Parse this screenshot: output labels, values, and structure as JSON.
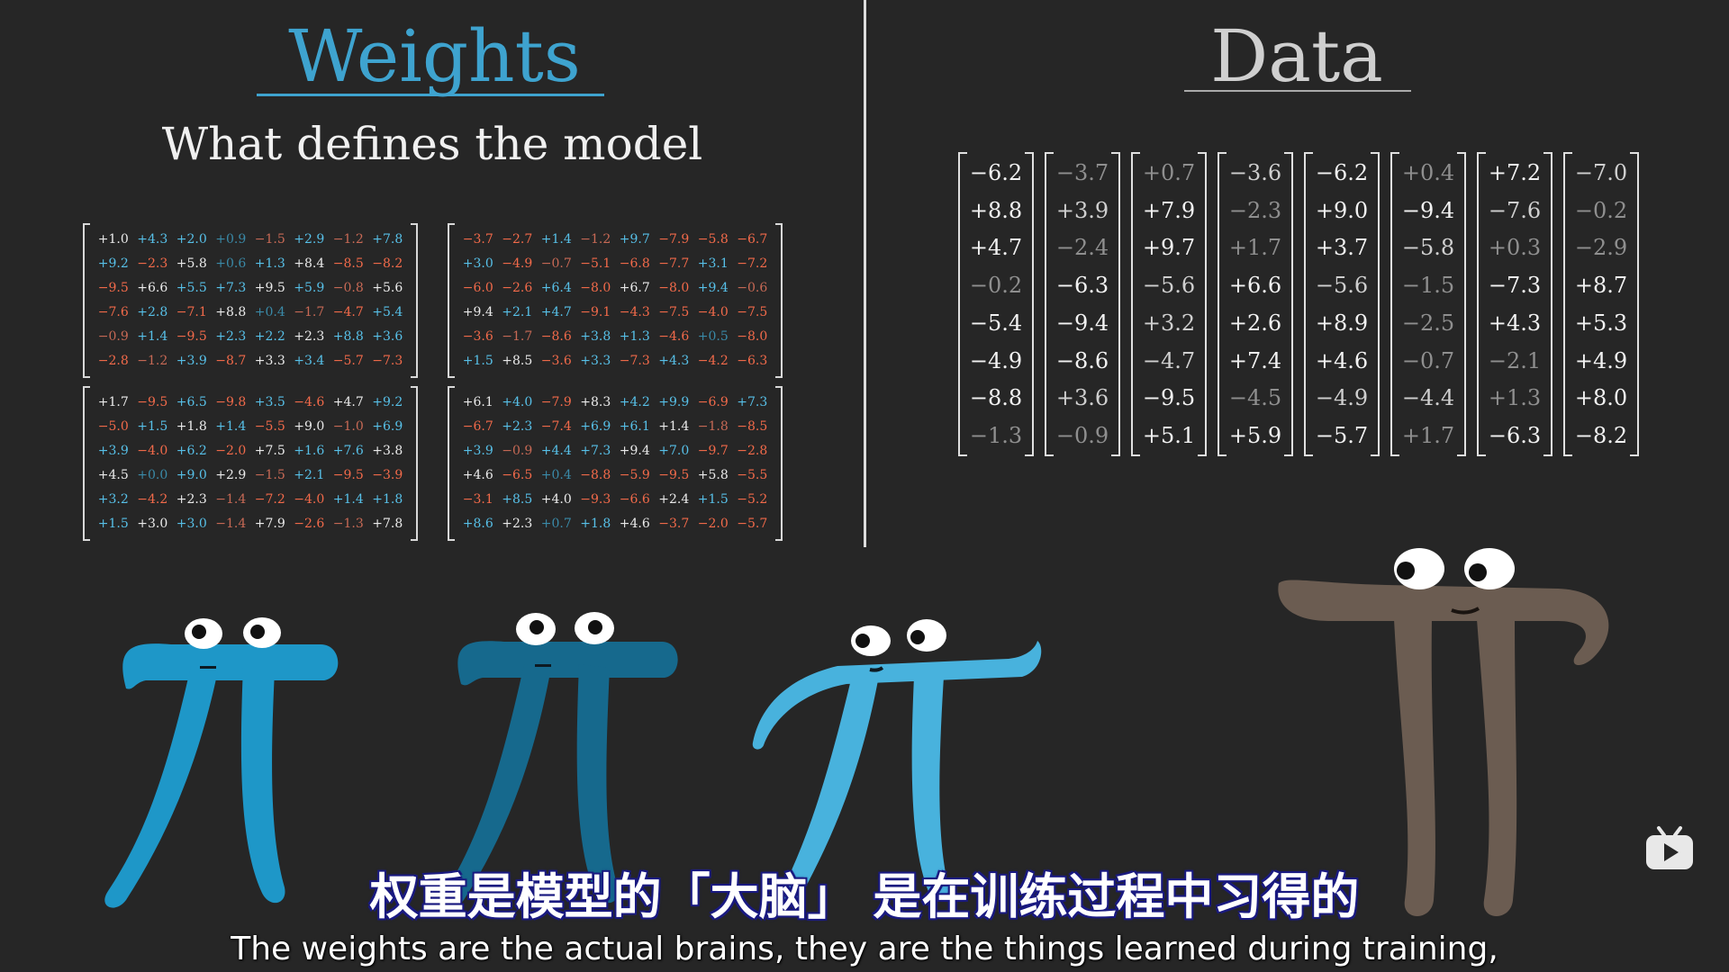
{
  "weights_title": "Weights",
  "weights_subtitle": "What defines the model",
  "data_title": "Data",
  "weight_matrices": [
    [
      [
        "+1.0",
        "+4.3",
        "+2.0",
        "+0.9",
        "−1.5",
        "+2.9",
        "−1.2",
        "+7.8"
      ],
      [
        "+9.2",
        "−2.3",
        "+5.8",
        "+0.6",
        "+1.3",
        "+8.4",
        "−8.5",
        "−8.2"
      ],
      [
        "−9.5",
        "+6.6",
        "+5.5",
        "+7.3",
        "+9.5",
        "+5.9",
        "−0.8",
        "+5.6"
      ],
      [
        "−7.6",
        "+2.8",
        "−7.1",
        "+8.8",
        "+0.4",
        "−1.7",
        "−4.7",
        "+5.4"
      ],
      [
        "−0.9",
        "+1.4",
        "−9.5",
        "+2.3",
        "+2.2",
        "+2.3",
        "+8.8",
        "+3.6"
      ],
      [
        "−2.8",
        "−1.2",
        "+3.9",
        "−8.7",
        "+3.3",
        "+3.4",
        "−5.7",
        "−7.3"
      ]
    ],
    [
      [
        "−3.7",
        "−2.7",
        "+1.4",
        "−1.2",
        "+9.7",
        "−7.9",
        "−5.8",
        "−6.7"
      ],
      [
        "+3.0",
        "−4.9",
        "−0.7",
        "−5.1",
        "−6.8",
        "−7.7",
        "+3.1",
        "−7.2"
      ],
      [
        "−6.0",
        "−2.6",
        "+6.4",
        "−8.0",
        "+6.7",
        "−8.0",
        "+9.4",
        "−0.6"
      ],
      [
        "+9.4",
        "+2.1",
        "+4.7",
        "−9.1",
        "−4.3",
        "−7.5",
        "−4.0",
        "−7.5"
      ],
      [
        "−3.6",
        "−1.7",
        "−8.6",
        "+3.8",
        "+1.3",
        "−4.6",
        "+0.5",
        "−8.0"
      ],
      [
        "+1.5",
        "+8.5",
        "−3.6",
        "+3.3",
        "−7.3",
        "+4.3",
        "−4.2",
        "−6.3"
      ]
    ],
    [
      [
        "+1.7",
        "−9.5",
        "+6.5",
        "−9.8",
        "+3.5",
        "−4.6",
        "+4.7",
        "+9.2"
      ],
      [
        "−5.0",
        "+1.5",
        "+1.8",
        "+1.4",
        "−5.5",
        "+9.0",
        "−1.0",
        "+6.9"
      ],
      [
        "+3.9",
        "−4.0",
        "+6.2",
        "−2.0",
        "+7.5",
        "+1.6",
        "+7.6",
        "+3.8"
      ],
      [
        "+4.5",
        "+0.0",
        "+9.0",
        "+2.9",
        "−1.5",
        "+2.1",
        "−9.5",
        "−3.9"
      ],
      [
        "+3.2",
        "−4.2",
        "+2.3",
        "−1.4",
        "−7.2",
        "−4.0",
        "+1.4",
        "+1.8"
      ],
      [
        "+1.5",
        "+3.0",
        "+3.0",
        "−1.4",
        "+7.9",
        "−2.6",
        "−1.3",
        "+7.8"
      ]
    ],
    [
      [
        "+6.1",
        "+4.0",
        "−7.9",
        "+8.3",
        "+4.2",
        "+9.9",
        "−6.9",
        "+7.3"
      ],
      [
        "−6.7",
        "+2.3",
        "−7.4",
        "+6.9",
        "+6.1",
        "+1.4",
        "−1.8",
        "−8.5"
      ],
      [
        "+3.9",
        "−0.9",
        "+4.4",
        "+7.3",
        "+9.4",
        "+7.0",
        "−9.7",
        "−2.8"
      ],
      [
        "+4.6",
        "−6.5",
        "+0.4",
        "−8.8",
        "−5.9",
        "−9.5",
        "+5.8",
        "−5.5"
      ],
      [
        "−3.1",
        "+8.5",
        "+4.0",
        "−9.3",
        "−6.6",
        "+2.4",
        "+1.5",
        "−5.2"
      ],
      [
        "+8.6",
        "+2.3",
        "+0.7",
        "+1.8",
        "+4.6",
        "−3.7",
        "−2.0",
        "−5.7"
      ]
    ]
  ],
  "data_vectors": [
    [
      "−6.2",
      "+8.8",
      "+4.7",
      "−0.2",
      "−5.4",
      "−4.9",
      "−8.8",
      "−1.3"
    ],
    [
      "−3.7",
      "+3.9",
      "−2.4",
      "−6.3",
      "−9.4",
      "−8.6",
      "+3.6",
      "−0.9"
    ],
    [
      "+0.7",
      "+7.9",
      "+9.7",
      "−5.6",
      "+3.2",
      "−4.7",
      "−9.5",
      "+5.1"
    ],
    [
      "−3.6",
      "−2.3",
      "+1.7",
      "+6.6",
      "+2.6",
      "+7.4",
      "−4.5",
      "+5.9"
    ],
    [
      "−6.2",
      "+9.0",
      "+3.7",
      "−5.6",
      "+8.9",
      "+4.6",
      "−4.9",
      "−5.7"
    ],
    [
      "+0.4",
      "−9.4",
      "−5.8",
      "−1.5",
      "−2.5",
      "−0.7",
      "−4.4",
      "+1.7"
    ],
    [
      "+7.2",
      "−7.6",
      "+0.3",
      "−7.3",
      "+4.3",
      "−2.1",
      "+1.3",
      "−6.3"
    ],
    [
      "−7.0",
      "−0.2",
      "−2.9",
      "+8.7",
      "+5.3",
      "+4.9",
      "+8.0",
      "−8.2"
    ]
  ],
  "subtitle_zh": "权重是模型的「大脑」  是在训练过程中习得的",
  "subtitle_en": "The weights are the actual brains, they are the things learned during training,",
  "colors": {
    "background": "#262626",
    "weights_title": "#3ea3cf",
    "pi_1": "#1e97c8",
    "pi_2": "#16698d",
    "pi_3": "#48b2dd",
    "pi_4": "#6b5c51",
    "positive": "#57c0e8",
    "negative": "#f26a4a"
  },
  "icons": {
    "player": "tv-play-icon"
  }
}
